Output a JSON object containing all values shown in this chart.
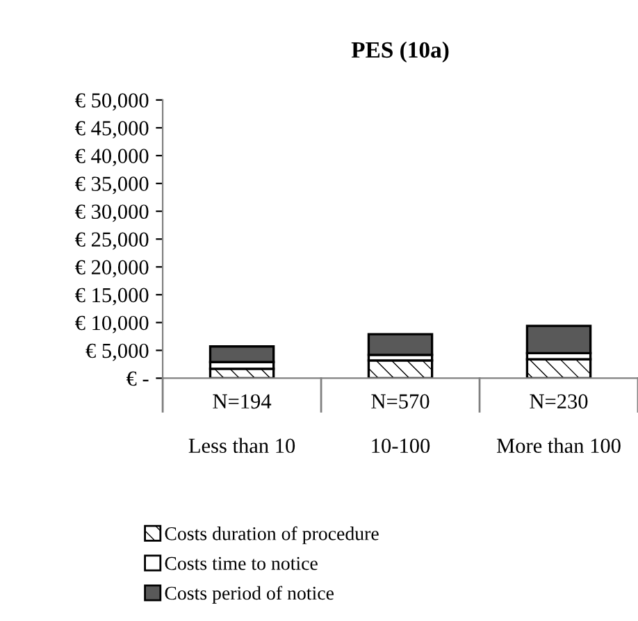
{
  "chart_data": {
    "type": "bar",
    "title": "PES (10a)",
    "stacked": true,
    "categories": [
      "N=194\n\nLess than 10",
      "N=570\n\n10-100",
      "N=230\n\nMore than 100"
    ],
    "series": [
      {
        "name": "Costs duration of procedure",
        "color": "#000000",
        "values": [
          1700,
          3200,
          3400
        ]
      },
      {
        "name": "Costs time to notice",
        "color": "#ffffff",
        "values": [
          1200,
          1000,
          1100
        ]
      },
      {
        "name": "Costs period of notice",
        "color": "#595959",
        "values": [
          2800,
          3700,
          4900
        ]
      }
    ],
    "ylim": [
      0,
      50000
    ],
    "yticks": [
      {
        "value": 0,
        "label": "€ -"
      },
      {
        "value": 5000,
        "label": "€ 5,000"
      },
      {
        "value": 10000,
        "label": "€ 10,000"
      },
      {
        "value": 15000,
        "label": "€ 15,000"
      },
      {
        "value": 20000,
        "label": "€ 20,000"
      },
      {
        "value": 25000,
        "label": "€ 25,000"
      },
      {
        "value": 30000,
        "label": "€ 30,000"
      },
      {
        "value": 35000,
        "label": "€ 35,000"
      },
      {
        "value": 40000,
        "label": "€ 40,000"
      },
      {
        "value": 45000,
        "label": "€ 45,000"
      },
      {
        "value": 50000,
        "label": "€ 50,000"
      }
    ],
    "legend": "bottom left",
    "grid": false
  }
}
